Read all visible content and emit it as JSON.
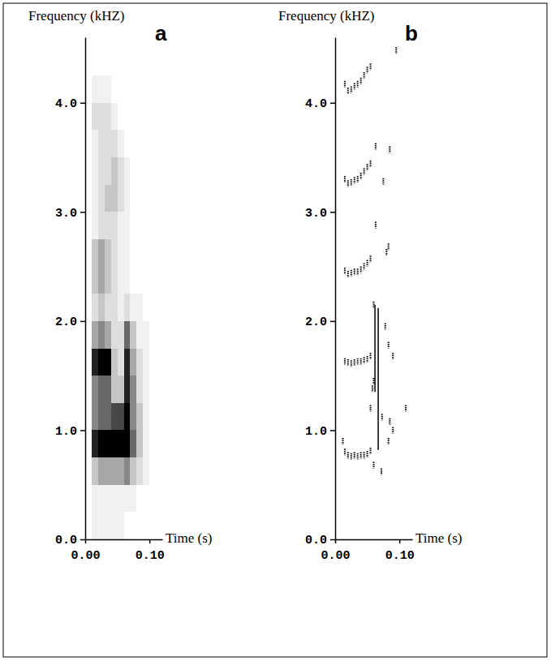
{
  "chart_data": [
    {
      "type": "heatmap",
      "title": "a",
      "x_label": "Time (s)",
      "y_label": "Frequency (kHZ)",
      "xlim": [
        0,
        0.12
      ],
      "xticks": [
        {
          "value": 0,
          "label": "0.00"
        },
        {
          "value": 0.1,
          "label": "0.10"
        }
      ],
      "ylim": [
        0,
        4.6
      ],
      "yticks": [
        {
          "value": 0,
          "label": "0.0"
        },
        {
          "value": 1,
          "label": "1.0"
        },
        {
          "value": 2,
          "label": "2.0"
        },
        {
          "value": 3,
          "label": "3.0"
        },
        {
          "value": 4,
          "label": "4.0"
        }
      ],
      "tick_labels": true,
      "value_range": [
        0,
        9
      ],
      "cell_x": [
        0,
        0.01,
        0.02,
        0.03,
        0.04,
        0.05,
        0.06,
        0.07,
        0.08,
        0.09,
        0.1,
        0.11,
        0.12
      ],
      "cell_y": [
        0,
        0.25,
        0.5,
        0.75,
        1,
        1.25,
        1.5,
        1.75,
        2,
        2.25,
        2.5,
        2.75,
        3,
        3.25,
        3.5,
        3.75,
        4,
        4.25
      ],
      "cells": [
        [
          0,
          1,
          1,
          1,
          1,
          1,
          0,
          0,
          0,
          0,
          0,
          0
        ],
        [
          0,
          1,
          1,
          1,
          1,
          1,
          1,
          1,
          0,
          0,
          0,
          0
        ],
        [
          0,
          3,
          4,
          4,
          4,
          4,
          5,
          3,
          2,
          1,
          0,
          0
        ],
        [
          0,
          8,
          9,
          9,
          9,
          9,
          9,
          6,
          3,
          1,
          0,
          0
        ],
        [
          0,
          5,
          6,
          6,
          7,
          7,
          9,
          5,
          3,
          1,
          0,
          0
        ],
        [
          0,
          5,
          6,
          6,
          3,
          3,
          8,
          5,
          2,
          1,
          0,
          0
        ],
        [
          0,
          8,
          9,
          9,
          3,
          2,
          8,
          4,
          2,
          1,
          0,
          0
        ],
        [
          0,
          4,
          5,
          4,
          2,
          2,
          6,
          3,
          1,
          1,
          0,
          0
        ],
        [
          0,
          2,
          3,
          2,
          2,
          1,
          2,
          1,
          1,
          0,
          0,
          0
        ],
        [
          0,
          3,
          4,
          3,
          2,
          1,
          1,
          0,
          0,
          0,
          0,
          0
        ],
        [
          0,
          3,
          4,
          3,
          2,
          1,
          1,
          0,
          0,
          0,
          0,
          0
        ],
        [
          0,
          1,
          2,
          2,
          2,
          1,
          1,
          0,
          0,
          0,
          0,
          0
        ],
        [
          0,
          1,
          2,
          3,
          3,
          2,
          1,
          0,
          0,
          0,
          0,
          0
        ],
        [
          0,
          1,
          2,
          2,
          3,
          2,
          1,
          0,
          0,
          0,
          0,
          0
        ],
        [
          0,
          1,
          2,
          2,
          2,
          1,
          0,
          0,
          0,
          0,
          0,
          0
        ],
        [
          0,
          2,
          2,
          2,
          1,
          0,
          0,
          0,
          0,
          0,
          0,
          0
        ],
        [
          0,
          1,
          1,
          1,
          0,
          0,
          0,
          0,
          0,
          0,
          0,
          0
        ]
      ]
    },
    {
      "type": "scatter",
      "title": "b",
      "x_label": "Time (s)",
      "y_label": "Frequency (kHZ)",
      "xlim": [
        0,
        0.12
      ],
      "xticks": [
        {
          "value": 0,
          "label": "0.00"
        },
        {
          "value": 0.1,
          "label": "0.10"
        }
      ],
      "ylim": [
        0,
        4.6
      ],
      "yticks": [
        {
          "value": 0,
          "label": "0.0"
        },
        {
          "value": 1,
          "label": "1.0"
        },
        {
          "value": 2,
          "label": "2.0"
        },
        {
          "value": 3,
          "label": "3.0"
        },
        {
          "value": 4,
          "label": "4.0"
        }
      ],
      "tick_labels": true,
      "series": [
        {
          "type": "scatter",
          "marker": "dash",
          "color": "#000000",
          "x": [
            0.015,
            0.02,
            0.025,
            0.03,
            0.035,
            0.04,
            0.045,
            0.05,
            0.055,
            0.015,
            0.02,
            0.025,
            0.03,
            0.035,
            0.04,
            0.045,
            0.05,
            0.055,
            0.015,
            0.02,
            0.025,
            0.03,
            0.035,
            0.04,
            0.045,
            0.05,
            0.055,
            0.015,
            0.02,
            0.025,
            0.03,
            0.035,
            0.04,
            0.045,
            0.05,
            0.055,
            0.015,
            0.02,
            0.025,
            0.03,
            0.035,
            0.04,
            0.045,
            0.05,
            0.055,
            0.012,
            0.095,
            0.063,
            0.085,
            0.075,
            0.063,
            0.08,
            0.083,
            0.06,
            0.078,
            0.083,
            0.09,
            0.06,
            0.058,
            0.055,
            0.073,
            0.085,
            0.09,
            0.11,
            0.06,
            0.072,
            0.083
          ],
          "values": [
            0.8,
            0.77,
            0.76,
            0.77,
            0.76,
            0.77,
            0.77,
            0.78,
            0.81,
            1.63,
            1.62,
            1.61,
            1.62,
            1.63,
            1.63,
            1.64,
            1.65,
            1.68,
            2.46,
            2.43,
            2.44,
            2.45,
            2.45,
            2.47,
            2.5,
            2.53,
            2.57,
            3.3,
            3.26,
            3.27,
            3.29,
            3.3,
            3.33,
            3.37,
            3.41,
            3.44,
            4.17,
            4.11,
            4.12,
            4.15,
            4.17,
            4.2,
            4.25,
            4.3,
            4.33,
            0.9,
            4.48,
            3.6,
            3.57,
            3.28,
            2.88,
            2.63,
            2.68,
            2.15,
            1.95,
            1.78,
            1.68,
            1.45,
            1.38,
            1.2,
            1.12,
            1.08,
            1.0,
            1.2,
            0.68,
            0.62,
            0.9
          ]
        },
        {
          "type": "line",
          "line_style": "solid",
          "color": "#000000",
          "x": [
            0.067,
            0.067
          ],
          "values": [
            0.82,
            2.12
          ]
        },
        {
          "type": "line",
          "line_style": "solid",
          "color": "#000000",
          "x": [
            0.062,
            0.062
          ],
          "values": [
            1.35,
            2.15
          ]
        }
      ]
    }
  ]
}
